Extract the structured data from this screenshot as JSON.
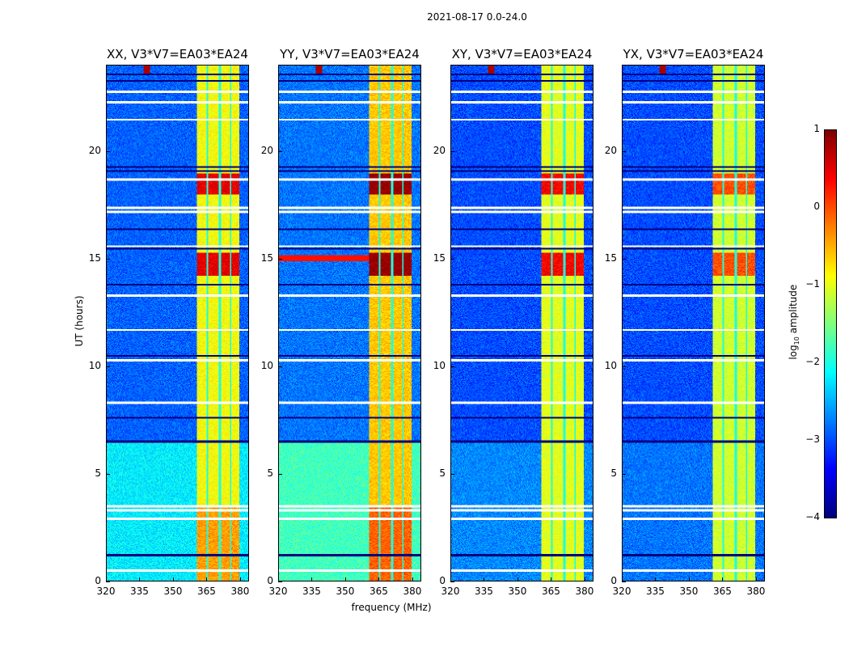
{
  "chart_data": {
    "type": "heatmap",
    "title": "2021-08-17 0.0-24.0",
    "xlabel": "frequency (MHz)",
    "ylabel": "UT (hours)",
    "xlim": [
      320,
      384
    ],
    "ylim": [
      0,
      24
    ],
    "xticks": [
      "320",
      "335",
      "350",
      "365",
      "380"
    ],
    "xtick_values": [
      320,
      335,
      350,
      365,
      380
    ],
    "yticks": [
      "0",
      "5",
      "10",
      "15",
      "20"
    ],
    "ytick_values": [
      0,
      5,
      10,
      15,
      20
    ],
    "colorbar": {
      "label": "log",
      "label_sub": "10",
      "label_rest": " amplitude",
      "clim": [
        -4,
        1
      ],
      "colormap": "jet",
      "ticks": [
        "1",
        "0",
        "−1",
        "−2",
        "−3",
        "−4"
      ],
      "tick_values": [
        1,
        0,
        -1,
        -2,
        -3,
        -4
      ]
    },
    "rfi_band_mhz": [
      360.5,
      380
    ],
    "rfi_band_subchannel_edges_mhz": [
      365.5,
      371,
      376
    ],
    "flagged_times_white": [
      0.5,
      2.9,
      3.3,
      3.5,
      8.3,
      10.3,
      11.7,
      13.3,
      15.6,
      17.2,
      17.4,
      18.7,
      21.5,
      22.3,
      22.8
    ],
    "gap_times_black": [
      1.2,
      6.5,
      7.6,
      10.5,
      13.8,
      15.5,
      16.4,
      19.1,
      19.3,
      23.3,
      23.6
    ],
    "panels": [
      {
        "title": "XX, V3*V7=EA03*EA24",
        "base_early": -2.2,
        "base_late": -2.9,
        "band_level": -0.9,
        "storm_level": 0.5
      },
      {
        "title": "YY, V3*V7=EA03*EA24",
        "base_early": -1.8,
        "base_late": -2.8,
        "band_level": -0.6,
        "storm_level": 0.9
      },
      {
        "title": "XY, V3*V7=EA03*EA24",
        "base_early": -2.7,
        "base_late": -3.0,
        "band_level": -1.0,
        "storm_level": 0.4
      },
      {
        "title": "YX, V3*V7=EA03*EA24",
        "base_early": -2.8,
        "base_late": -3.0,
        "band_level": -1.1,
        "storm_level": 0.0
      }
    ]
  }
}
